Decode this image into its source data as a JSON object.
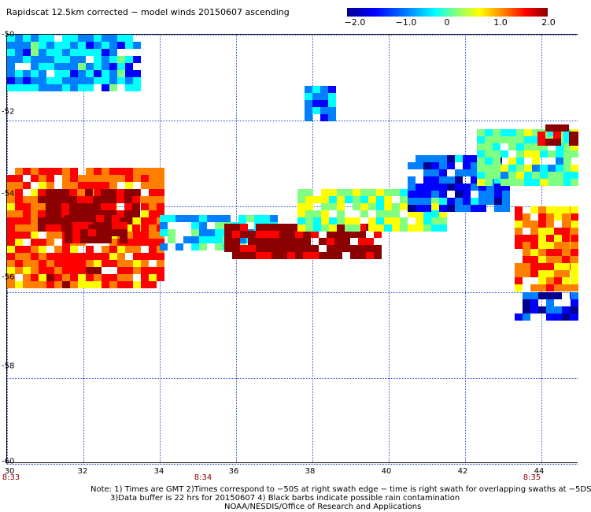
{
  "title": "Rapidscat 12.5km corrected − model winds 20150607 ascending",
  "colorbar": {
    "labels": [
      "−2.0",
      "−1.0",
      "0",
      "1.0",
      "2.0"
    ],
    "min": -2.0,
    "max": 2.0,
    "colors": [
      "#00008f",
      "#0000ff",
      "#0080ff",
      "#00ffff",
      "#80ff80",
      "#ffff00",
      "#ff8000",
      "#ff0000",
      "#8b0000"
    ]
  },
  "axes": {
    "x_ticks": [
      "30",
      "32",
      "34",
      "36",
      "38",
      "40",
      "42",
      "44"
    ],
    "y_ticks": [
      "-50",
      "-52",
      "-54",
      "-56",
      "-58",
      "-60"
    ],
    "x_range": [
      30,
      45
    ],
    "y_range": [
      -50,
      -60
    ],
    "grid": true
  },
  "times": [
    {
      "label": "8:33",
      "lon": 30.1
    },
    {
      "label": "8:34",
      "lon": 35.1
    },
    {
      "label": "8:35",
      "lon": 43.8
    }
  ],
  "notes": [
    "Note: 1) Times are GMT 2)Times correspond to −50S at right swath edge − time is right swath for overlapping swaths at −5DS",
    "3)Data buffer is 22 hrs for 20150607 4) Black barbs indicate possible rain contamination",
    "NOAA/NESDIS/Office of Research and Applications"
  ],
  "chart_data": {
    "type": "heatmap",
    "title": "Rapidscat 12.5km corrected − model winds 20150607 ascending",
    "x_ticks": [
      30,
      32,
      34,
      36,
      38,
      40,
      42,
      44
    ],
    "y_ticks": [
      -50,
      -52,
      -54,
      -56,
      -58,
      -60
    ],
    "xlim": [
      30,
      45
    ],
    "ylim": [
      -60,
      -50
    ],
    "value_range": [
      -2.0,
      2.0
    ],
    "regions": [
      {
        "lon": [
          30,
          34
        ],
        "lat": [
          -55.9,
          -53.1
        ],
        "value": 1.2
      },
      {
        "lon": [
          30.8,
          33.4
        ],
        "lat": [
          -54.5,
          -53.6
        ],
        "value": 2.0
      },
      {
        "lon": [
          31.5,
          33.0
        ],
        "lat": [
          -54.8,
          -54.2
        ],
        "value": 2.0
      },
      {
        "lon": [
          34,
          37
        ],
        "lat": [
          -55.0,
          -54.2
        ],
        "value": -0.6
      },
      {
        "lon": [
          35.7,
          39.7
        ],
        "lat": [
          -55.2,
          -54.4
        ],
        "value": 2.0
      },
      {
        "lon": [
          37.6,
          41.5
        ],
        "lat": [
          -54.6,
          -53.6
        ],
        "value": 0.1
      },
      {
        "lon": [
          40.5,
          43.0
        ],
        "lat": [
          -54.1,
          -52.8
        ],
        "value": -1.3
      },
      {
        "lon": [
          42.3,
          45.0
        ],
        "lat": [
          -53.4,
          -52.2
        ],
        "value": -0.2
      },
      {
        "lon": [
          43.9,
          45.0
        ],
        "lat": [
          -52.5,
          -52.1
        ],
        "value": 2.0
      },
      {
        "lon": [
          43.3,
          45.0
        ],
        "lat": [
          -56.0,
          -54.0
        ],
        "value": 1.0
      },
      {
        "lon": [
          43.3,
          45.0
        ],
        "lat": [
          -56.6,
          -56.0
        ],
        "value": -1.6
      },
      {
        "lon": [
          30,
          33.5
        ],
        "lat": [
          -51.2,
          -50.0
        ],
        "value": -0.8
      },
      {
        "lon": [
          37.8,
          38.5
        ],
        "lat": [
          -52.0,
          -51.2
        ],
        "value": -1.0
      }
    ]
  }
}
